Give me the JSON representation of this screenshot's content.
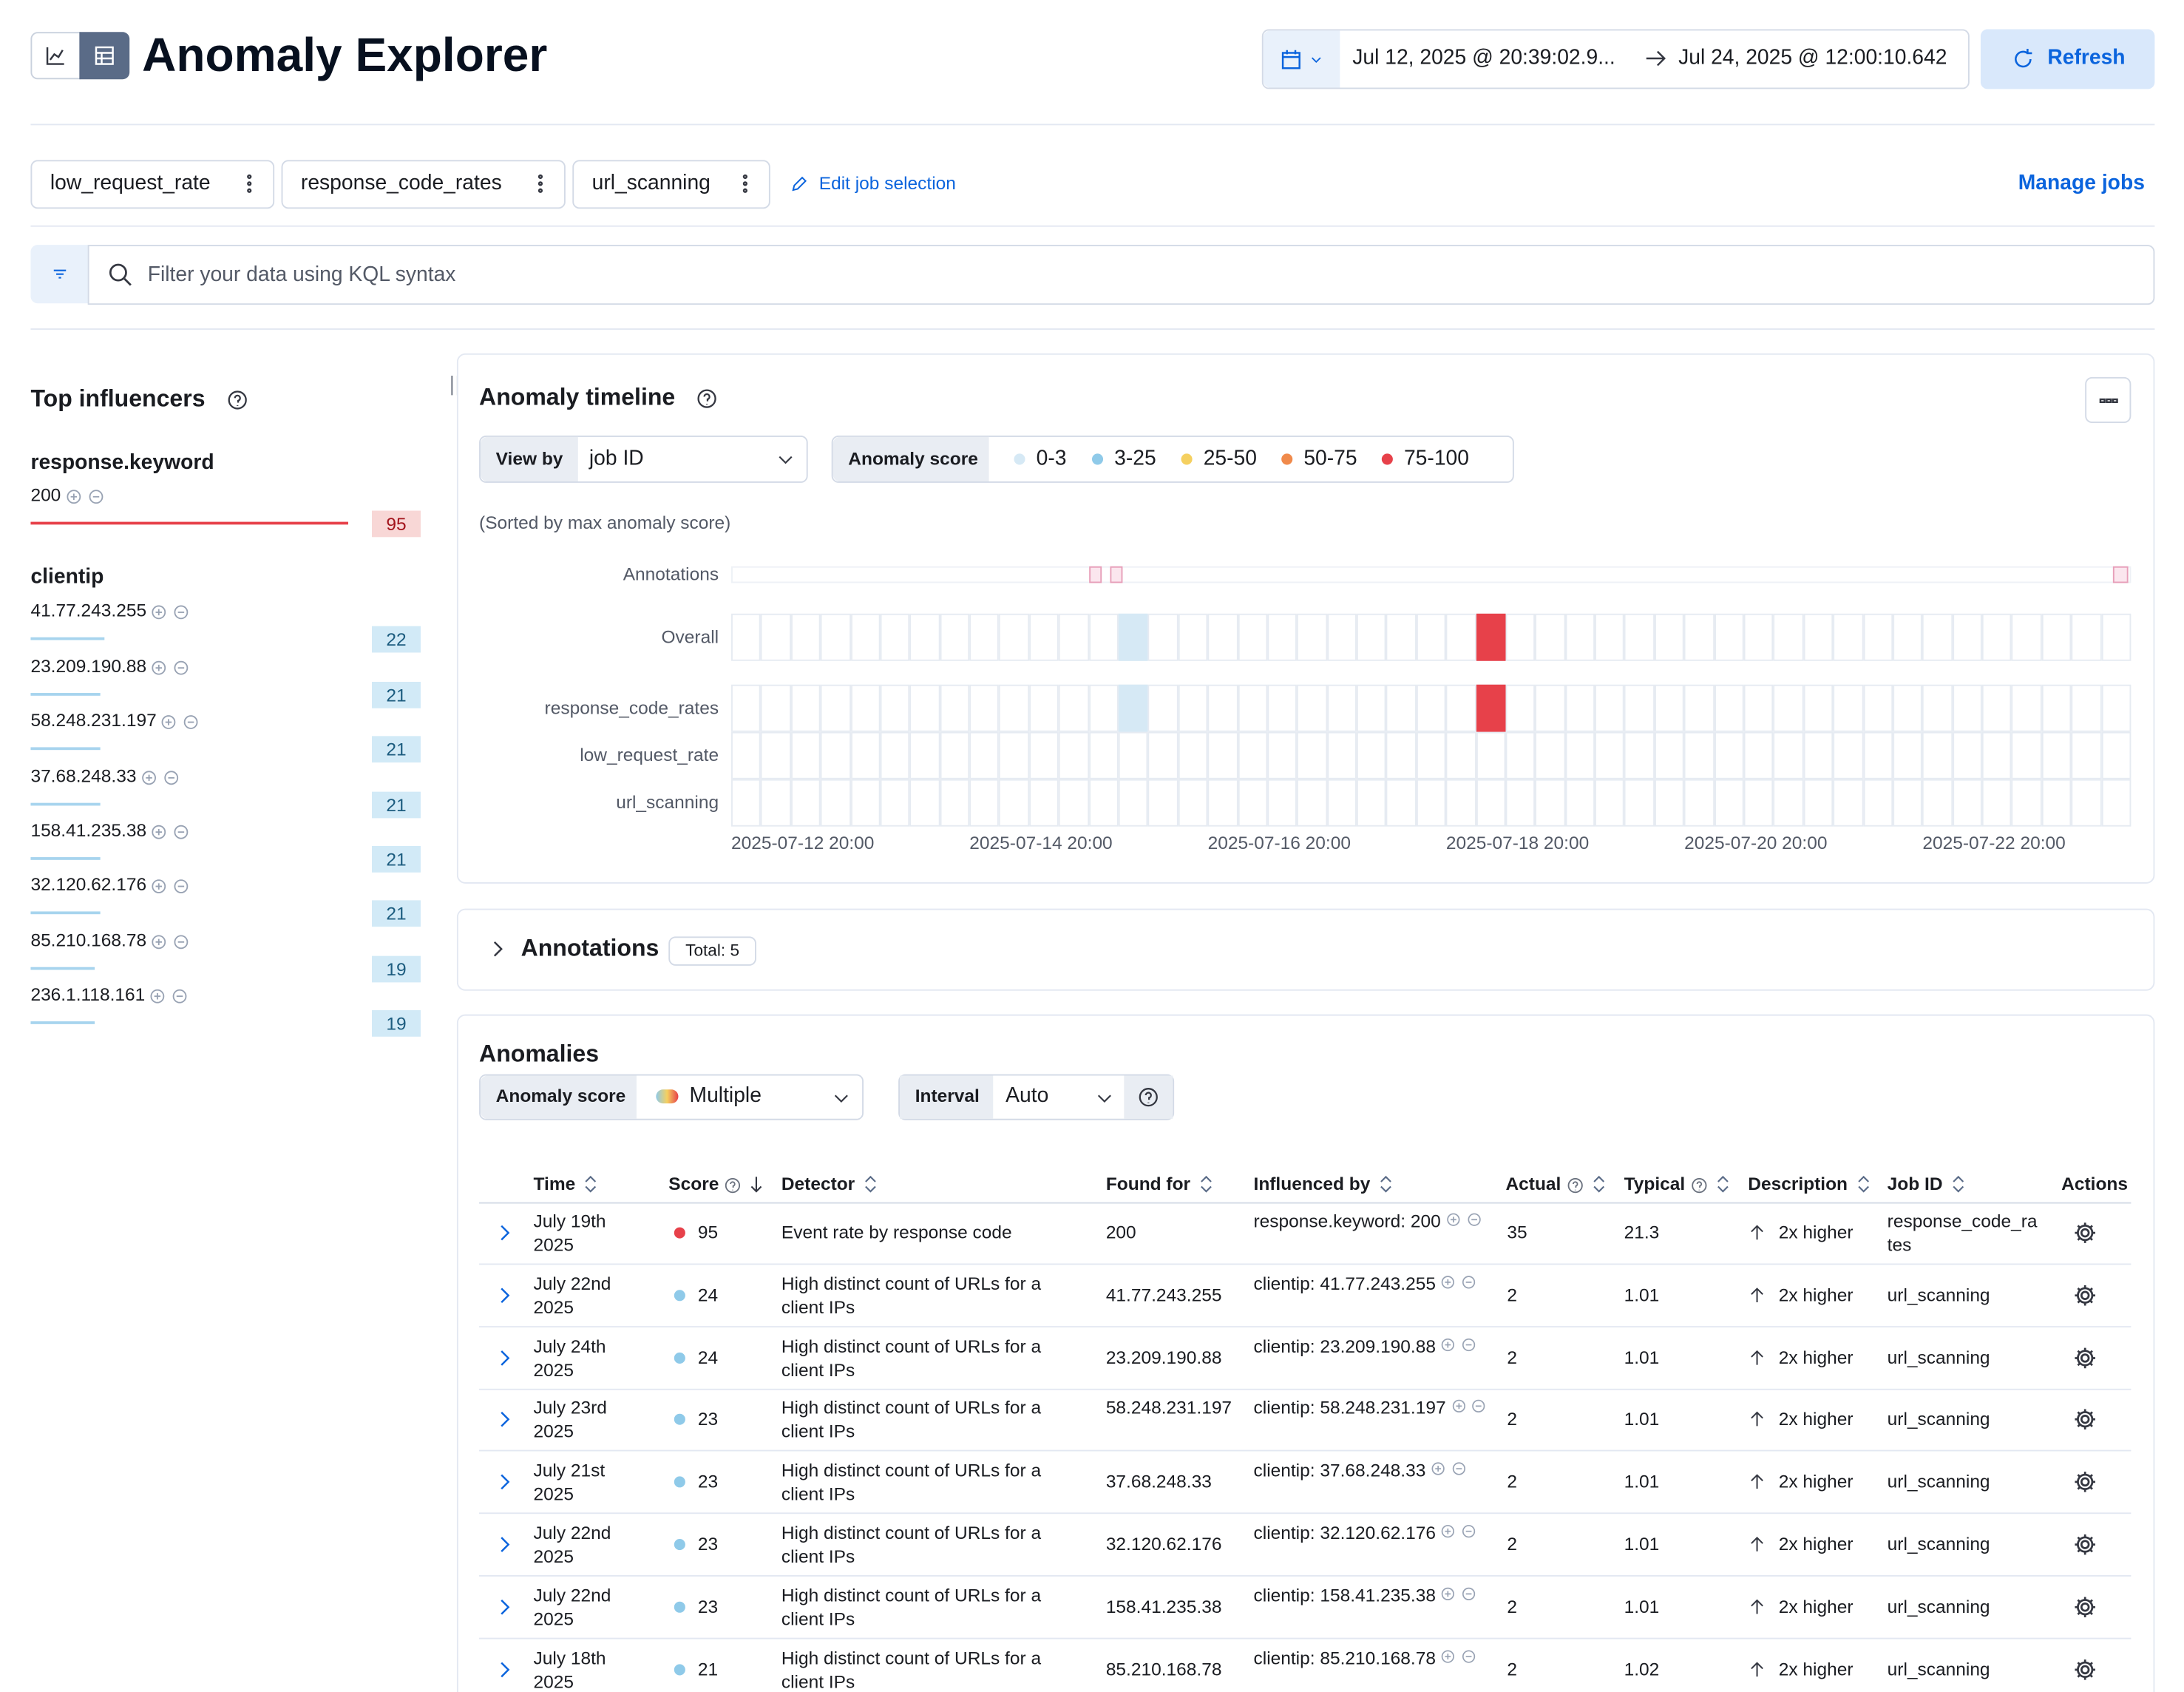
{
  "header": {
    "title": "Anomaly Explorer",
    "date_start": "Jul 12, 2025 @ 20:39:02.9...",
    "date_end": "Jul 24, 2025 @ 12:00:10.642",
    "refresh": "Refresh"
  },
  "jobs": {
    "selected": [
      "low_request_rate",
      "response_code_rates",
      "url_scanning"
    ],
    "edit": "Edit job selection",
    "manage": "Manage jobs"
  },
  "search": {
    "placeholder": "Filter your data using KQL syntax"
  },
  "influencers": {
    "title": "Top influencers",
    "groups": [
      {
        "field": "response.keyword",
        "color": "#e7414a",
        "badge_bg": "#f8d7d6",
        "badge_fg": "#a3141c",
        "items": [
          {
            "name": "200",
            "score": 95
          }
        ]
      },
      {
        "field": "clientip",
        "color": "#a7d4ee",
        "badge_bg": "#d2eaf7",
        "badge_fg": "#1c5c7f",
        "items": [
          {
            "name": "41.77.243.255",
            "score": 22
          },
          {
            "name": "23.209.190.88",
            "score": 21
          },
          {
            "name": "58.248.231.197",
            "score": 21
          },
          {
            "name": "37.68.248.33",
            "score": 21
          },
          {
            "name": "158.41.235.38",
            "score": 21
          },
          {
            "name": "32.120.62.176",
            "score": 21
          },
          {
            "name": "85.210.168.78",
            "score": 19
          },
          {
            "name": "236.1.118.161",
            "score": 19
          }
        ]
      }
    ]
  },
  "timeline": {
    "title": "Anomaly timeline",
    "view_by_label": "View by",
    "view_by": "job ID",
    "score_label": "Anomaly score",
    "legend": [
      {
        "label": "0-3",
        "color": "#d6e9f5"
      },
      {
        "label": "3-25",
        "color": "#8fcae9"
      },
      {
        "label": "25-50",
        "color": "#f5d060"
      },
      {
        "label": "50-75",
        "color": "#f08a4b"
      },
      {
        "label": "75-100",
        "color": "#e7414a"
      }
    ],
    "sort_note": "(Sorted by max anomaly score)",
    "annotations_label": "Annotations",
    "rows": [
      {
        "label": "Overall",
        "cells": [
          {
            "index": 13,
            "color": "#d6e9f5"
          },
          {
            "index": 25,
            "color": "#e7414a"
          }
        ]
      },
      {
        "label": "response_code_rates",
        "cells": [
          {
            "index": 13,
            "color": "#d6e9f5"
          },
          {
            "index": 25,
            "color": "#e7414a"
          }
        ]
      },
      {
        "label": "low_request_rate",
        "cells": []
      },
      {
        "label": "url_scanning",
        "cells": []
      }
    ],
    "x_labels": [
      "2025-07-12 20:00",
      "2025-07-14 20:00",
      "2025-07-16 20:00",
      "2025-07-18 20:00",
      "2025-07-20 20:00",
      "2025-07-22 20:00"
    ]
  },
  "annotations": {
    "title": "Annotations",
    "total": "Total: 5"
  },
  "anomalies": {
    "title": "Anomalies",
    "score_label": "Anomaly score",
    "score_value": "Multiple",
    "interval_label": "Interval",
    "interval_value": "Auto",
    "columns": [
      "Time",
      "Score",
      "Detector",
      "Found for",
      "Influenced by",
      "Actual",
      "Typical",
      "Description",
      "Job ID",
      "Actions"
    ],
    "rows": [
      {
        "time": "July 19th 2025",
        "score": 95,
        "color": "#e7414a",
        "detector": "Event rate by response code",
        "found_for": "200",
        "influenced_by": "response.keyword: 200",
        "actual": 35,
        "typical": 21.3,
        "description": "2x higher",
        "job_id": "response_code_rates"
      },
      {
        "time": "July 22nd 2025",
        "score": 24,
        "color": "#8fcae9",
        "detector": "High distinct count of URLs for a client IPs",
        "found_for": "41.77.243.255",
        "influenced_by": "clientip: 41.77.243.255",
        "actual": 2,
        "typical": 1.01,
        "description": "2x higher",
        "job_id": "url_scanning"
      },
      {
        "time": "July 24th 2025",
        "score": 24,
        "color": "#8fcae9",
        "detector": "High distinct count of URLs for a client IPs",
        "found_for": "23.209.190.88",
        "influenced_by": "clientip: 23.209.190.88",
        "actual": 2,
        "typical": 1.01,
        "description": "2x higher",
        "job_id": "url_scanning"
      },
      {
        "time": "July 23rd 2025",
        "score": 23,
        "color": "#8fcae9",
        "detector": "High distinct count of URLs for a client IPs",
        "found_for": "58.248.231.197",
        "influenced_by": "clientip: 58.248.231.197",
        "actual": 2,
        "typical": 1.01,
        "description": "2x higher",
        "job_id": "url_scanning"
      },
      {
        "time": "July 21st 2025",
        "score": 23,
        "color": "#8fcae9",
        "detector": "High distinct count of URLs for a client IPs",
        "found_for": "37.68.248.33",
        "influenced_by": "clientip: 37.68.248.33",
        "actual": 2,
        "typical": 1.01,
        "description": "2x higher",
        "job_id": "url_scanning"
      },
      {
        "time": "July 22nd 2025",
        "score": 23,
        "color": "#8fcae9",
        "detector": "High distinct count of URLs for a client IPs",
        "found_for": "32.120.62.176",
        "influenced_by": "clientip: 32.120.62.176",
        "actual": 2,
        "typical": 1.01,
        "description": "2x higher",
        "job_id": "url_scanning"
      },
      {
        "time": "July 22nd 2025",
        "score": 23,
        "color": "#8fcae9",
        "detector": "High distinct count of URLs for a client IPs",
        "found_for": "158.41.235.38",
        "influenced_by": "clientip: 158.41.235.38",
        "actual": 2,
        "typical": 1.01,
        "description": "2x higher",
        "job_id": "url_scanning"
      },
      {
        "time": "July 18th 2025",
        "score": 21,
        "color": "#8fcae9",
        "detector": "High distinct count of URLs for a client IPs",
        "found_for": "85.210.168.78",
        "influenced_by": "clientip: 85.210.168.78",
        "actual": 2,
        "typical": 1.02,
        "description": "2x higher",
        "job_id": "url_scanning"
      }
    ]
  }
}
